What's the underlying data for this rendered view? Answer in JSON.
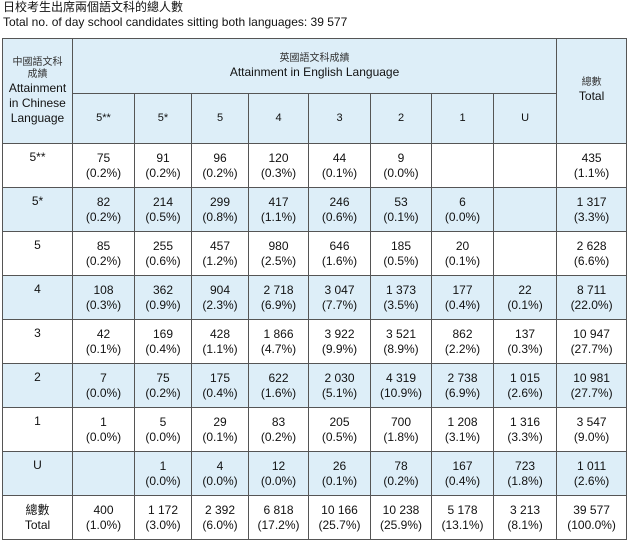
{
  "header": {
    "title_zh": "日校考生出席兩個語文科的總人數",
    "title_en": "Total no. of day school candidates sitting both languages: 39 577"
  },
  "table": {
    "corner": {
      "zh_1": "中國語文科",
      "zh_2": "成績",
      "en": "Attainment in Chinese Language"
    },
    "english_header": {
      "zh": "英國語文科成績",
      "en": "Attainment in English Language"
    },
    "total_header": {
      "zh": "總數",
      "en": "Total"
    },
    "grades": [
      "5**",
      "5*",
      "5",
      "4",
      "3",
      "2",
      "1",
      "U"
    ],
    "rows": [
      {
        "label": "5**",
        "cells": [
          [
            "75",
            "(0.2%)"
          ],
          [
            "91",
            "(0.2%)"
          ],
          [
            "96",
            "(0.2%)"
          ],
          [
            "120",
            "(0.3%)"
          ],
          [
            "44",
            "(0.1%)"
          ],
          [
            "9",
            "(0.0%)"
          ],
          null,
          null
        ],
        "total": [
          "435",
          "(1.1%)"
        ]
      },
      {
        "label": "5*",
        "cells": [
          [
            "82",
            "(0.2%)"
          ],
          [
            "214",
            "(0.5%)"
          ],
          [
            "299",
            "(0.8%)"
          ],
          [
            "417",
            "(1.1%)"
          ],
          [
            "246",
            "(0.6%)"
          ],
          [
            "53",
            "(0.1%)"
          ],
          [
            "6",
            "(0.0%)"
          ],
          null
        ],
        "total": [
          "1 317",
          "(3.3%)"
        ]
      },
      {
        "label": "5",
        "cells": [
          [
            "85",
            "(0.2%)"
          ],
          [
            "255",
            "(0.6%)"
          ],
          [
            "457",
            "(1.2%)"
          ],
          [
            "980",
            "(2.5%)"
          ],
          [
            "646",
            "(1.6%)"
          ],
          [
            "185",
            "(0.5%)"
          ],
          [
            "20",
            "(0.1%)"
          ],
          null
        ],
        "total": [
          "2 628",
          "(6.6%)"
        ]
      },
      {
        "label": "4",
        "cells": [
          [
            "108",
            "(0.3%)"
          ],
          [
            "362",
            "(0.9%)"
          ],
          [
            "904",
            "(2.3%)"
          ],
          [
            "2 718",
            "(6.9%)"
          ],
          [
            "3 047",
            "(7.7%)"
          ],
          [
            "1 373",
            "(3.5%)"
          ],
          [
            "177",
            "(0.4%)"
          ],
          [
            "22",
            "(0.1%)"
          ]
        ],
        "total": [
          "8 711",
          "(22.0%)"
        ]
      },
      {
        "label": "3",
        "cells": [
          [
            "42",
            "(0.1%)"
          ],
          [
            "169",
            "(0.4%)"
          ],
          [
            "428",
            "(1.1%)"
          ],
          [
            "1 866",
            "(4.7%)"
          ],
          [
            "3 922",
            "(9.9%)"
          ],
          [
            "3 521",
            "(8.9%)"
          ],
          [
            "862",
            "(2.2%)"
          ],
          [
            "137",
            "(0.3%)"
          ]
        ],
        "total": [
          "10 947",
          "(27.7%)"
        ]
      },
      {
        "label": "2",
        "cells": [
          [
            "7",
            "(0.0%)"
          ],
          [
            "75",
            "(0.2%)"
          ],
          [
            "175",
            "(0.4%)"
          ],
          [
            "622",
            "(1.6%)"
          ],
          [
            "2 030",
            "(5.1%)"
          ],
          [
            "4 319",
            "(10.9%)"
          ],
          [
            "2 738",
            "(6.9%)"
          ],
          [
            "1 015",
            "(2.6%)"
          ]
        ],
        "total": [
          "10 981",
          "(27.7%)"
        ]
      },
      {
        "label": "1",
        "cells": [
          [
            "1",
            "(0.0%)"
          ],
          [
            "5",
            "(0.0%)"
          ],
          [
            "29",
            "(0.1%)"
          ],
          [
            "83",
            "(0.2%)"
          ],
          [
            "205",
            "(0.5%)"
          ],
          [
            "700",
            "(1.8%)"
          ],
          [
            "1 208",
            "(3.1%)"
          ],
          [
            "1 316",
            "(3.3%)"
          ]
        ],
        "total": [
          "3 547",
          "(9.0%)"
        ]
      },
      {
        "label": "U",
        "cells": [
          null,
          [
            "1",
            "(0.0%)"
          ],
          [
            "4",
            "(0.0%)"
          ],
          [
            "12",
            "(0.0%)"
          ],
          [
            "26",
            "(0.1%)"
          ],
          [
            "78",
            "(0.2%)"
          ],
          [
            "167",
            "(0.4%)"
          ],
          [
            "723",
            "(1.8%)"
          ]
        ],
        "total": [
          "1 011",
          "(2.6%)"
        ]
      }
    ],
    "total_row": {
      "label_zh": "總數",
      "label_en": "Total",
      "cells": [
        [
          "400",
          "(1.0%)"
        ],
        [
          "1 172",
          "(3.0%)"
        ],
        [
          "2 392",
          "(6.0%)"
        ],
        [
          "6 818",
          "(17.2%)"
        ],
        [
          "10 166",
          "(25.7%)"
        ],
        [
          "10 238",
          "(25.9%)"
        ],
        [
          "5 178",
          "(13.1%)"
        ],
        [
          "3 213",
          "(8.1%)"
        ]
      ],
      "total": [
        "39 577",
        "(100.0%)"
      ]
    }
  }
}
